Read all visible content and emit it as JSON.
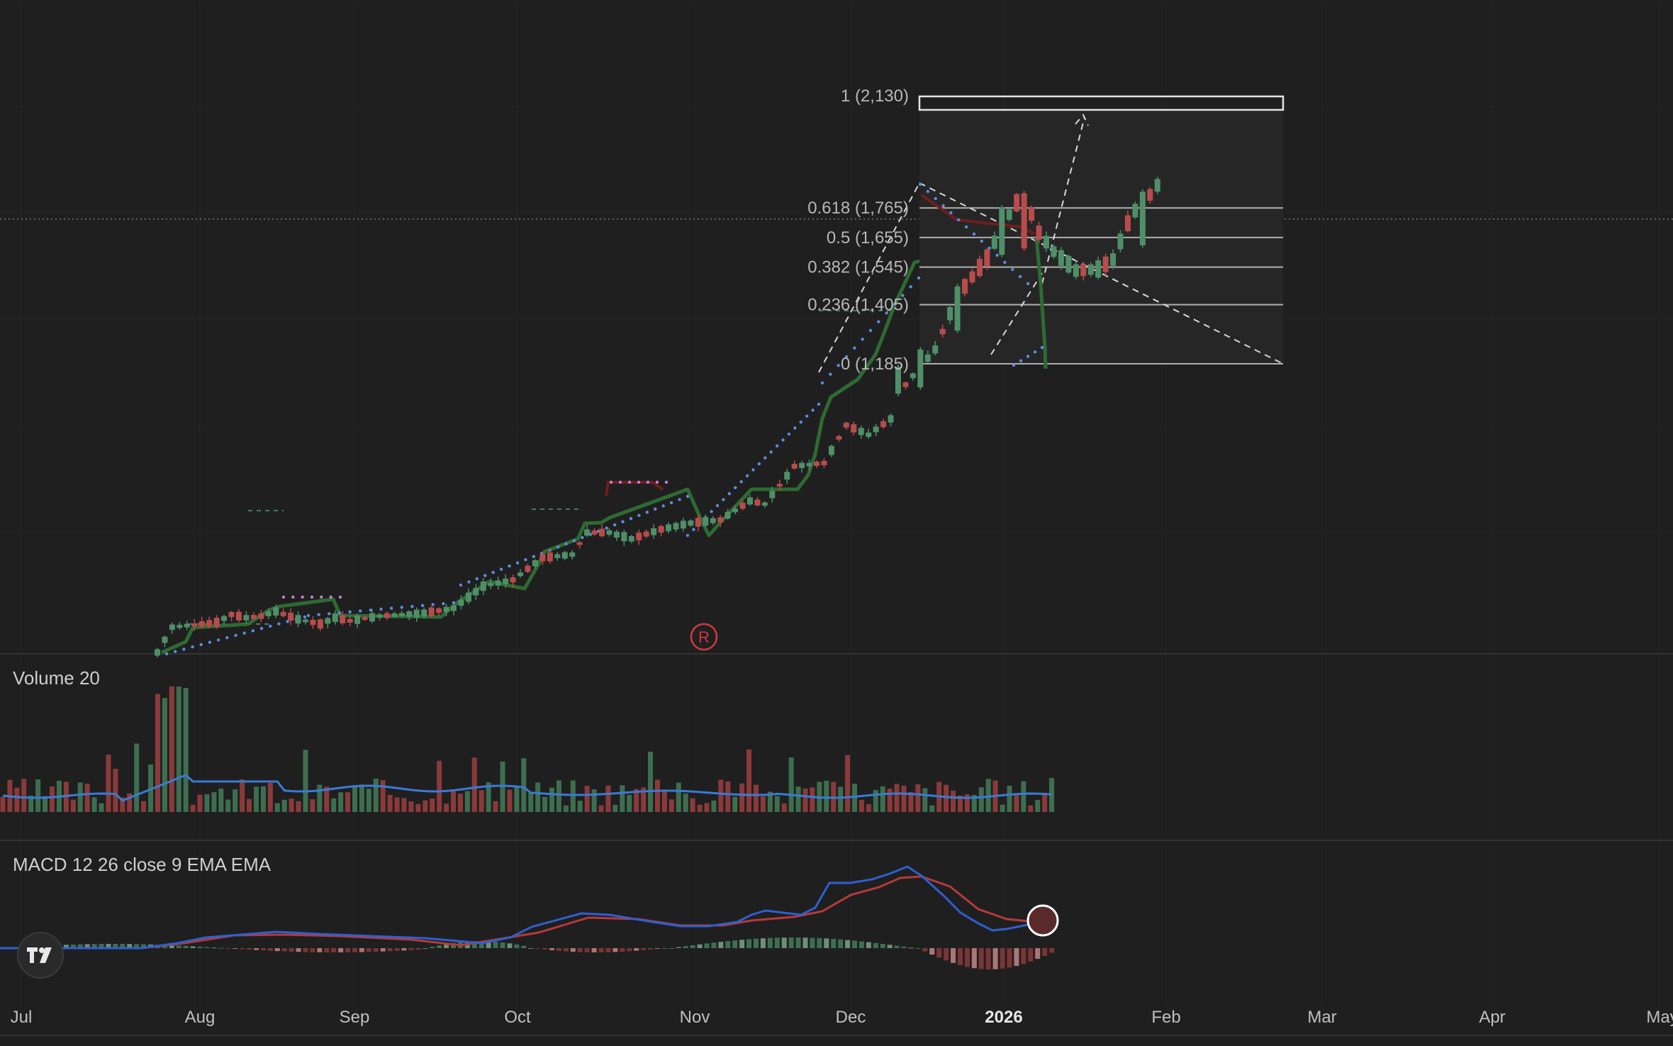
{
  "chart_data": {
    "type": "candlestick",
    "time_axis_labels": [
      "Jul",
      "Aug",
      "Sep",
      "Oct",
      "Nov",
      "Dec",
      "2026",
      "Feb",
      "Mar",
      "Apr",
      "May"
    ],
    "time_axis_bold": "2026",
    "fib_retracement": {
      "levels": [
        {
          "label": "1 (2,130)",
          "price": 2130
        },
        {
          "label": "0.618 (1,765)",
          "price": 1765
        },
        {
          "label": "0.5 (1,655)",
          "price": 1655
        },
        {
          "label": "0.382 (1,545)",
          "price": 1545
        },
        {
          "label": "0.236 (1,405)",
          "price": 1405
        },
        {
          "label": "0 (1,185)",
          "price": 1185
        }
      ]
    },
    "marker": "R",
    "panes": {
      "volume": {
        "title": "Volume 20"
      },
      "macd": {
        "title": "MACD 12 26 close 9 EMA EMA"
      }
    },
    "colors": {
      "up": "#4f8f68",
      "down": "#b84c4c",
      "supertrend": "#2e6b32",
      "supertrend_down": "#6e1e1e",
      "sar": "#5b8de0",
      "volume_ma": "#3a7bd5",
      "macd": "#2f5fd0",
      "signal": "#b53a3a",
      "fib_line": "#b0b0b0",
      "marker": "#d33a3a"
    }
  }
}
